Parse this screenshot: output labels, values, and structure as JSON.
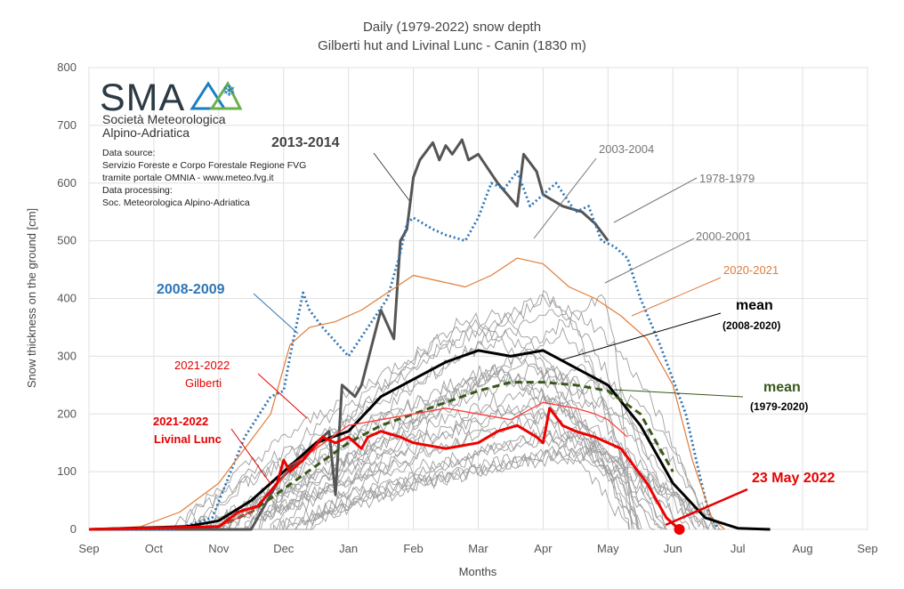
{
  "chart_data": {
    "type": "line",
    "title": "Daily (1979-2022) snow depth",
    "subtitle": "Gilberti hut and Livinal Lunc - Canin (1830 m)",
    "xlabel": "Months",
    "ylabel": "Snow thickness on the ground [cm]",
    "ylim": [
      0,
      800
    ],
    "yticks": [
      0,
      100,
      200,
      300,
      400,
      500,
      600,
      700,
      800
    ],
    "xticks": [
      "Sep",
      "Oct",
      "Nov",
      "Dec",
      "Jan",
      "Feb",
      "Mar",
      "Apr",
      "May",
      "Jun",
      "Jul",
      "Aug",
      "Sep"
    ],
    "grid": true,
    "series": [
      {
        "name": "2013-2014",
        "color": "#555555",
        "x": [
          0,
          2.5,
          2.9,
          3.4,
          3.7,
          3.8,
          3.9,
          4.1,
          4.2,
          4.5,
          4.7,
          4.8,
          4.9,
          5.0,
          5.1,
          5.3,
          5.4,
          5.5,
          5.6,
          5.75,
          5.85,
          6.0,
          6.3,
          6.6,
          6.7,
          6.9,
          7.0,
          7.3,
          7.6,
          7.8,
          8.0
        ],
        "y": [
          0,
          0,
          80,
          140,
          170,
          60,
          250,
          230,
          250,
          380,
          330,
          500,
          520,
          610,
          640,
          670,
          640,
          665,
          650,
          675,
          640,
          650,
          600,
          560,
          650,
          620,
          580,
          560,
          550,
          530,
          500
        ]
      },
      {
        "name": "2008-2009",
        "color": "#2e75b6",
        "x": [
          0,
          1.3,
          1.9,
          2.4,
          2.8,
          3.0,
          3.1,
          3.3,
          3.4,
          3.6,
          4.0,
          4.3,
          4.6,
          4.8,
          4.9,
          5.0,
          5.3,
          5.5,
          5.8,
          6.0,
          6.2,
          6.4,
          6.6,
          6.8,
          7.0,
          7.2,
          7.5,
          7.7,
          7.9,
          8.1,
          8.3,
          8.5,
          8.8,
          9.0,
          9.2,
          9.4,
          9.55,
          9.7
        ],
        "y": [
          0,
          0,
          20,
          160,
          230,
          240,
          300,
          410,
          380,
          350,
          300,
          350,
          400,
          480,
          530,
          540,
          520,
          510,
          500,
          540,
          600,
          590,
          620,
          560,
          580,
          600,
          550,
          560,
          500,
          490,
          470,
          400,
          320,
          260,
          200,
          100,
          30,
          0
        ]
      },
      {
        "name": "2020-2021",
        "color": "#e07b39",
        "x": [
          0,
          0.8,
          1.4,
          2.0,
          2.8,
          3.1,
          3.4,
          3.8,
          4.2,
          4.6,
          5.0,
          5.4,
          5.8,
          6.2,
          6.6,
          7.0,
          7.4,
          7.8,
          8.2,
          8.6,
          9.0,
          9.3,
          9.6,
          9.8
        ],
        "y": [
          0,
          5,
          30,
          80,
          200,
          320,
          350,
          360,
          380,
          410,
          440,
          430,
          420,
          440,
          470,
          460,
          420,
          400,
          370,
          330,
          250,
          120,
          20,
          0
        ]
      },
      {
        "name": "mean",
        "note": "(2008-2020)",
        "color": "#000000",
        "x": [
          0,
          1.5,
          2.0,
          2.5,
          3.0,
          3.5,
          4.0,
          4.5,
          5.0,
          5.5,
          6.0,
          6.5,
          7.0,
          7.5,
          8.0,
          8.5,
          9.0,
          9.5,
          10.0,
          10.5
        ],
        "y": [
          0,
          5,
          15,
          50,
          100,
          150,
          170,
          230,
          260,
          290,
          310,
          300,
          310,
          280,
          250,
          180,
          80,
          20,
          2,
          0
        ]
      },
      {
        "name": "mean",
        "note": "(1979-2020)",
        "color": "#38571a",
        "x": [
          0,
          2.0,
          2.5,
          3.0,
          3.5,
          4.0,
          4.5,
          5.0,
          5.5,
          6.0,
          6.5,
          7.0,
          7.5,
          8.0,
          8.5,
          9.0
        ],
        "y": [
          0,
          5,
          30,
          70,
          110,
          150,
          180,
          200,
          220,
          240,
          255,
          255,
          250,
          240,
          200,
          100
        ]
      },
      {
        "name": "2021-2022",
        "note": "Gilberti",
        "color": "#ff3b3b",
        "x": [
          0,
          2.0,
          2.5,
          3.0,
          3.1,
          3.5,
          4.0,
          4.5,
          5.0,
          5.5,
          6.0,
          6.5,
          7.0,
          7.5,
          7.8,
          8.0,
          8.3
        ],
        "y": [
          0,
          5,
          30,
          90,
          110,
          140,
          180,
          190,
          200,
          210,
          200,
          190,
          220,
          210,
          200,
          190,
          160
        ]
      },
      {
        "name": "2021-2022",
        "note": "Livinal Lunc",
        "color": "#ee0000",
        "x": [
          0,
          2.0,
          2.3,
          2.6,
          2.9,
          3.0,
          3.1,
          3.3,
          3.6,
          3.8,
          4.0,
          4.2,
          4.3,
          4.5,
          4.8,
          5.0,
          5.5,
          6.0,
          6.3,
          6.6,
          6.9,
          7.0,
          7.1,
          7.3,
          7.5,
          7.8,
          8.0,
          8.2,
          8.6,
          8.9,
          9.1
        ],
        "y": [
          0,
          5,
          30,
          40,
          80,
          120,
          100,
          120,
          160,
          150,
          160,
          140,
          160,
          170,
          160,
          150,
          140,
          150,
          170,
          180,
          160,
          150,
          210,
          180,
          170,
          160,
          150,
          140,
          80,
          20,
          0
        ]
      }
    ],
    "annotations": [
      {
        "text": "2013-2014"
      },
      {
        "text": "2003-2004"
      },
      {
        "text": "1978-1979"
      },
      {
        "text": "2000-2001"
      },
      {
        "text": "2020-2021"
      },
      {
        "text": "2008-2009"
      },
      {
        "text": "mean"
      },
      {
        "text": "(2008-2020)"
      },
      {
        "text": "mean"
      },
      {
        "text": "(1979-2020)"
      },
      {
        "text": "2021-2022"
      },
      {
        "text": "Gilberti"
      },
      {
        "text": "2021-2022"
      },
      {
        "text": "Livinal Lunc"
      },
      {
        "text": "23 May 2022"
      }
    ]
  },
  "logo": {
    "text": "SMA",
    "org_line1": "Società Meteorologica",
    "org_line2": "Alpino-Adriatica"
  },
  "source": {
    "line1": "Data source:",
    "line2": "Servizio Foreste e Corpo Forestale Regione FVG",
    "line3": "tramite portale OMNIA - www.meteo.fvg.it",
    "line4": "Data processing:",
    "line5": "Soc. Meteorologica Alpino-Adriatica"
  },
  "colors": {
    "plot_border": "#bfbfbf",
    "grid": "#d9d9d9",
    "logo_blue": "#1a7fc1",
    "logo_green": "#6ab04c"
  }
}
